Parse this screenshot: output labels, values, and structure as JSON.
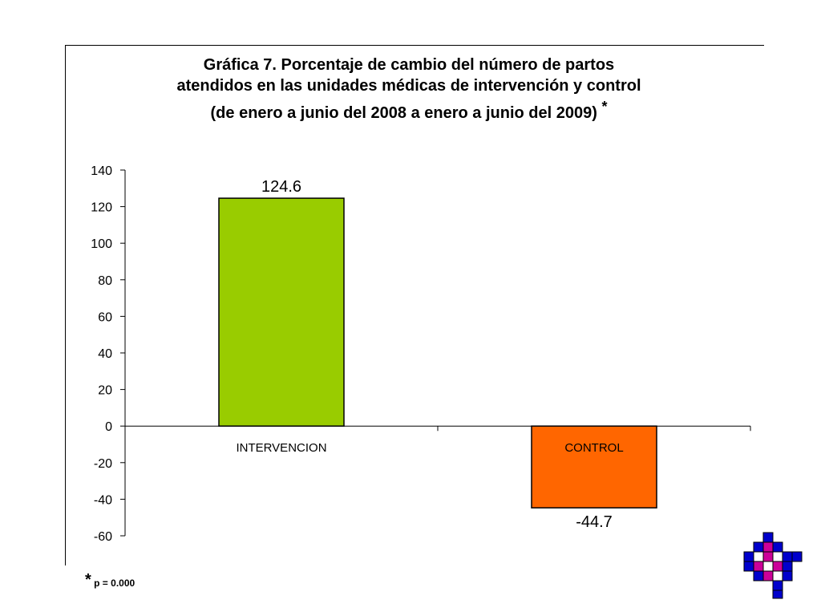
{
  "chart_data": {
    "type": "bar",
    "title_lines": [
      "Gráfica 7.  Porcentaje de  cambio  del  número de partos",
      "atendidos en las unidades médicas de intervención y control",
      "(de enero a junio del 2008 a enero a junio del 2009)"
    ],
    "title_marker": "*",
    "categories": [
      "INTERVENCION",
      "CONTROL"
    ],
    "values": [
      124.6,
      -44.7
    ],
    "data_labels": [
      "124.6",
      "-44.7"
    ],
    "colors": [
      "#99cc00",
      "#ff6600"
    ],
    "ylim": [
      -60,
      140
    ],
    "yticks": [
      140,
      120,
      100,
      80,
      60,
      40,
      20,
      0,
      -20,
      -40,
      -60
    ],
    "xlabel": "",
    "ylabel": "",
    "grid": false,
    "legend": "none"
  },
  "footnote": {
    "marker": "*",
    "text": "p = 0.000"
  },
  "logo": {
    "icon": "institution-logo-icon",
    "colors": [
      "#0000cc",
      "#cc0099",
      "#ffffff"
    ]
  }
}
